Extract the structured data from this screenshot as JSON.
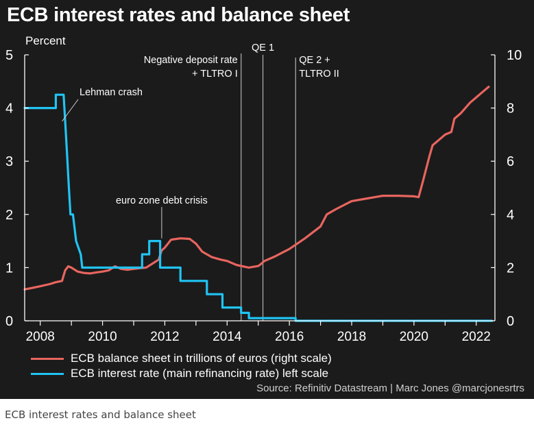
{
  "chart_data": {
    "type": "line",
    "title": "ECB interest rates and balance sheet",
    "y_left_label": "Percent",
    "y_left_range": [
      0,
      5
    ],
    "y_left_ticks": [
      "0",
      "1",
      "2",
      "3",
      "4",
      "5"
    ],
    "y_right_range": [
      0,
      10
    ],
    "y_right_ticks": [
      "0",
      "2",
      "4",
      "6",
      "8",
      "10"
    ],
    "x_range": [
      2007.5,
      2022.6
    ],
    "x_ticks": [
      {
        "value": 2008,
        "label": "2008"
      },
      {
        "value": 2010,
        "label": "2010"
      },
      {
        "value": 2012,
        "label": "2012"
      },
      {
        "value": 2014,
        "label": "2014"
      },
      {
        "value": 2016,
        "label": "2016"
      },
      {
        "value": 2018,
        "label": "2018"
      },
      {
        "value": 2020,
        "label": "2020"
      },
      {
        "value": 2022,
        "label": "2022"
      }
    ],
    "grid": false,
    "legend_position": "bottom-left",
    "series": [
      {
        "name": "ECB balance sheet in trillions of euros (right scale)",
        "axis": "right",
        "color": "#e8655f",
        "x": [
          2007.5,
          2007.8,
          2008.0,
          2008.3,
          2008.5,
          2008.7,
          2008.8,
          2008.9,
          2009.0,
          2009.2,
          2009.4,
          2009.6,
          2009.8,
          2010.0,
          2010.2,
          2010.4,
          2010.6,
          2010.8,
          2011.0,
          2011.2,
          2011.4,
          2011.6,
          2011.8,
          2011.9,
          2012.0,
          2012.2,
          2012.5,
          2012.8,
          2013.0,
          2013.2,
          2013.5,
          2013.8,
          2014.0,
          2014.3,
          2014.5,
          2014.7,
          2014.8,
          2015.0,
          2015.1,
          2015.2,
          2015.5,
          2016.0,
          2016.5,
          2017.0,
          2017.2,
          2017.5,
          2018.0,
          2018.5,
          2019.0,
          2019.5,
          2020.0,
          2020.15,
          2020.3,
          2020.5,
          2020.6,
          2020.8,
          2021.0,
          2021.2,
          2021.3,
          2021.5,
          2021.8,
          2022.0,
          2022.2,
          2022.4
        ],
        "values": [
          1.18,
          1.25,
          1.3,
          1.38,
          1.45,
          1.5,
          1.9,
          2.05,
          2.0,
          1.85,
          1.8,
          1.78,
          1.82,
          1.85,
          1.9,
          2.05,
          1.95,
          1.92,
          1.95,
          1.98,
          2.0,
          2.15,
          2.3,
          2.65,
          2.75,
          3.05,
          3.1,
          3.08,
          2.9,
          2.6,
          2.4,
          2.3,
          2.25,
          2.1,
          2.05,
          2.0,
          2.02,
          2.06,
          2.15,
          2.25,
          2.4,
          2.7,
          3.1,
          3.55,
          4.0,
          4.2,
          4.5,
          4.6,
          4.7,
          4.7,
          4.68,
          4.65,
          5.3,
          6.2,
          6.6,
          6.8,
          7.0,
          7.1,
          7.6,
          7.8,
          8.2,
          8.4,
          8.6,
          8.8
        ]
      },
      {
        "name": "ECB interest rate (main refinancing rate) left scale",
        "axis": "left",
        "color": "#20c4f4",
        "x": [
          2007.5,
          2008.5,
          2008.5,
          2008.75,
          2008.8,
          2008.85,
          2008.92,
          2008.97,
          2009.05,
          2009.15,
          2009.3,
          2009.35,
          2011.27,
          2011.27,
          2011.5,
          2011.5,
          2011.85,
          2011.85,
          2012.5,
          2012.5,
          2013.35,
          2013.35,
          2013.85,
          2013.85,
          2014.45,
          2014.45,
          2014.7,
          2014.7,
          2016.2,
          2016.2,
          2022.5
        ],
        "values": [
          4.0,
          4.0,
          4.25,
          4.25,
          3.75,
          3.25,
          2.5,
          2.0,
          2.0,
          1.5,
          1.25,
          1.0,
          1.0,
          1.25,
          1.25,
          1.5,
          1.5,
          1.0,
          1.0,
          0.75,
          0.75,
          0.5,
          0.5,
          0.25,
          0.25,
          0.15,
          0.15,
          0.05,
          0.05,
          0.0,
          0.0
        ]
      }
    ],
    "event_lines": [
      {
        "x": 2014.45,
        "label_lines": [
          "Negative deposit rate",
          "+ TLTRO I"
        ]
      },
      {
        "x": 2015.15,
        "label_lines": [
          "QE 1"
        ]
      },
      {
        "x": 2016.2,
        "label_lines": [
          "QE 2 +",
          "TLTRO II"
        ]
      }
    ],
    "annotations": [
      {
        "text": "Lehman crash",
        "x": 2008.7,
        "y": 3.75
      },
      {
        "text": "euro zone debt crisis",
        "x": 2011.9,
        "y": 1.5
      }
    ],
    "source": "Source: Refinitiv Datastream | Marc Jones @marcjonesrtrs"
  },
  "caption": "ECB interest rates and balance sheet",
  "colors": {
    "background": "#1b1b1b",
    "axis": "#ffffff",
    "event_line": "#b5b5b5"
  }
}
